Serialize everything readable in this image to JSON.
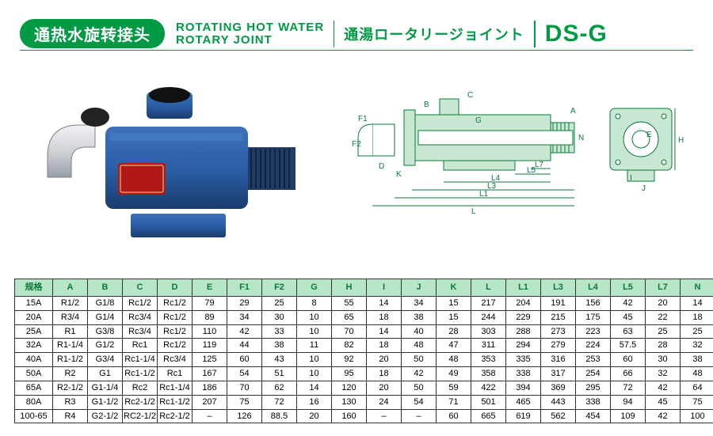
{
  "header": {
    "cn": "通热水旋转接头",
    "en_line1": "ROTATING HOT WATER",
    "en_line2": "ROTARY JOINT",
    "jp": "通湯ロータリージョイント",
    "model": "DS-G",
    "green": "#009944",
    "light_green": "#b8e6c8"
  },
  "diagram": {
    "labels": [
      "A",
      "B",
      "C",
      "D",
      "E",
      "F1",
      "F2",
      "G",
      "H",
      "I",
      "J",
      "K",
      "L",
      "L1",
      "L3",
      "L4",
      "L5",
      "L7",
      "N"
    ],
    "box_fill": "#c9e8d3",
    "line": "#0a7a3a"
  },
  "table": {
    "columns": [
      "规格",
      "A",
      "B",
      "C",
      "D",
      "E",
      "F1",
      "F2",
      "G",
      "H",
      "I",
      "J",
      "K",
      "L",
      "L1",
      "L3",
      "L4",
      "L5",
      "L7",
      "N"
    ],
    "rows": [
      [
        "15A",
        "R1/2",
        "G1/8",
        "Rc1/2",
        "Rc1/2",
        "79",
        "29",
        "25",
        "8",
        "55",
        "14",
        "34",
        "15",
        "217",
        "204",
        "191",
        "156",
        "42",
        "20",
        "14"
      ],
      [
        "20A",
        "R3/4",
        "G1/4",
        "Rc3/4",
        "Rc1/2",
        "89",
        "34",
        "30",
        "10",
        "65",
        "18",
        "38",
        "15",
        "244",
        "229",
        "215",
        "175",
        "45",
        "22",
        "18"
      ],
      [
        "25A",
        "R1",
        "G3/8",
        "Rc3/4",
        "Rc1/2",
        "110",
        "42",
        "33",
        "10",
        "70",
        "14",
        "40",
        "28",
        "303",
        "288",
        "273",
        "223",
        "63",
        "25",
        "25"
      ],
      [
        "32A",
        "R1-1/4",
        "G1/2",
        "Rc1",
        "Rc1/2",
        "119",
        "44",
        "38",
        "11",
        "82",
        "18",
        "48",
        "47",
        "311",
        "294",
        "279",
        "224",
        "57.5",
        "28",
        "32"
      ],
      [
        "40A",
        "R1-1/2",
        "G3/4",
        "Rc1-1/4",
        "Rc3/4",
        "125",
        "60",
        "43",
        "10",
        "92",
        "20",
        "50",
        "48",
        "353",
        "335",
        "316",
        "253",
        "60",
        "30",
        "38"
      ],
      [
        "50A",
        "R2",
        "G1",
        "Rc1-1/2",
        "Rc1",
        "167",
        "54",
        "51",
        "10",
        "95",
        "18",
        "42",
        "49",
        "358",
        "338",
        "317",
        "254",
        "66",
        "32",
        "48"
      ],
      [
        "65A",
        "R2-1/2",
        "G1-1/4",
        "Rc2",
        "Rc1-1/4",
        "186",
        "70",
        "62",
        "14",
        "120",
        "20",
        "50",
        "59",
        "422",
        "394",
        "369",
        "295",
        "72",
        "42",
        "64"
      ],
      [
        "80A",
        "R3",
        "G1-1/2",
        "Rc2-1/2",
        "Rc1-1/2",
        "207",
        "75",
        "72",
        "16",
        "130",
        "24",
        "54",
        "71",
        "501",
        "465",
        "443",
        "338",
        "94",
        "45",
        "75"
      ],
      [
        "100-65",
        "R4",
        "G2-1/2",
        "RC2-1/2",
        "Rc2-1/2",
        "–",
        "126",
        "88.5",
        "20",
        "160",
        "–",
        "–",
        "60",
        "665",
        "619",
        "562",
        "454",
        "109",
        "42",
        "100"
      ]
    ]
  },
  "photo": {
    "body_color": "#2a5fa8",
    "body_dark": "#1a3d6e",
    "elbow_color": "#cfd2d6",
    "label_red": "#b01818"
  }
}
